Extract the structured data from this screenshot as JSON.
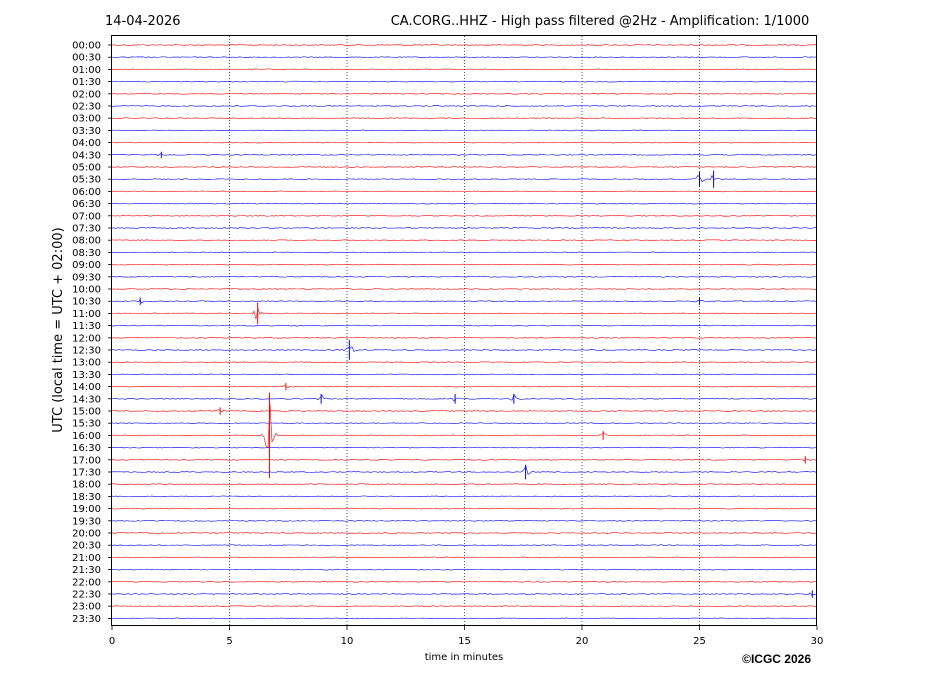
{
  "chart_data": {
    "type": "line",
    "date": "14-04-2026",
    "title": "CA.CORG..HHZ - High pass filtered @2Hz - Amplification: 1/1000",
    "xlabel": "time in minutes",
    "ylabel": "UTC (local time = UTC + 02:00)",
    "copyright": "©ICGC 2026",
    "xlim": [
      0,
      30
    ],
    "x_ticks": [
      0,
      5,
      10,
      15,
      20,
      25,
      30
    ],
    "x_tick_labels": [
      "0",
      "5",
      "10",
      "15",
      "20",
      "25",
      "30"
    ],
    "grid": "vertical dotted at x ticks",
    "series_colors": [
      "#ff0000",
      "#0000ff"
    ],
    "rows": [
      "00:00",
      "00:30",
      "01:00",
      "01:30",
      "02:00",
      "02:30",
      "03:00",
      "03:30",
      "04:00",
      "04:30",
      "05:00",
      "05:30",
      "06:00",
      "06:30",
      "07:00",
      "07:30",
      "08:00",
      "08:30",
      "09:00",
      "09:30",
      "10:00",
      "10:30",
      "11:00",
      "11:30",
      "12:00",
      "12:30",
      "13:00",
      "13:30",
      "14:00",
      "14:30",
      "15:00",
      "15:30",
      "16:00",
      "16:30",
      "17:00",
      "17:30",
      "18:00",
      "18:30",
      "19:00",
      "19:30",
      "20:00",
      "20:30",
      "21:00",
      "21:30",
      "22:00",
      "22:30",
      "23:00",
      "23:30"
    ],
    "events": [
      {
        "row": "04:30",
        "minute": 2.1,
        "amp": 0.25
      },
      {
        "row": "05:30",
        "minute": 25.0,
        "amp": 0.6
      },
      {
        "row": "05:30",
        "minute": 25.6,
        "amp": 0.7
      },
      {
        "row": "10:30",
        "minute": 1.2,
        "amp": 0.3
      },
      {
        "row": "10:30",
        "minute": 25.0,
        "amp": 0.3
      },
      {
        "row": "11:00",
        "minute": 6.2,
        "amp": 0.9
      },
      {
        "row": "12:30",
        "minute": 10.1,
        "amp": 0.8
      },
      {
        "row": "14:00",
        "minute": 7.4,
        "amp": 0.3
      },
      {
        "row": "14:30",
        "minute": 8.9,
        "amp": 0.4
      },
      {
        "row": "14:30",
        "minute": 14.6,
        "amp": 0.4
      },
      {
        "row": "14:30",
        "minute": 17.1,
        "amp": 0.4
      },
      {
        "row": "15:00",
        "minute": 4.6,
        "amp": 0.3
      },
      {
        "row": "16:00",
        "minute": 6.7,
        "amp": 3.5
      },
      {
        "row": "16:00",
        "minute": 20.9,
        "amp": 0.35
      },
      {
        "row": "17:00",
        "minute": 29.5,
        "amp": 0.3
      },
      {
        "row": "17:30",
        "minute": 17.6,
        "amp": 0.6
      },
      {
        "row": "22:30",
        "minute": 29.8,
        "amp": 0.3
      }
    ]
  }
}
